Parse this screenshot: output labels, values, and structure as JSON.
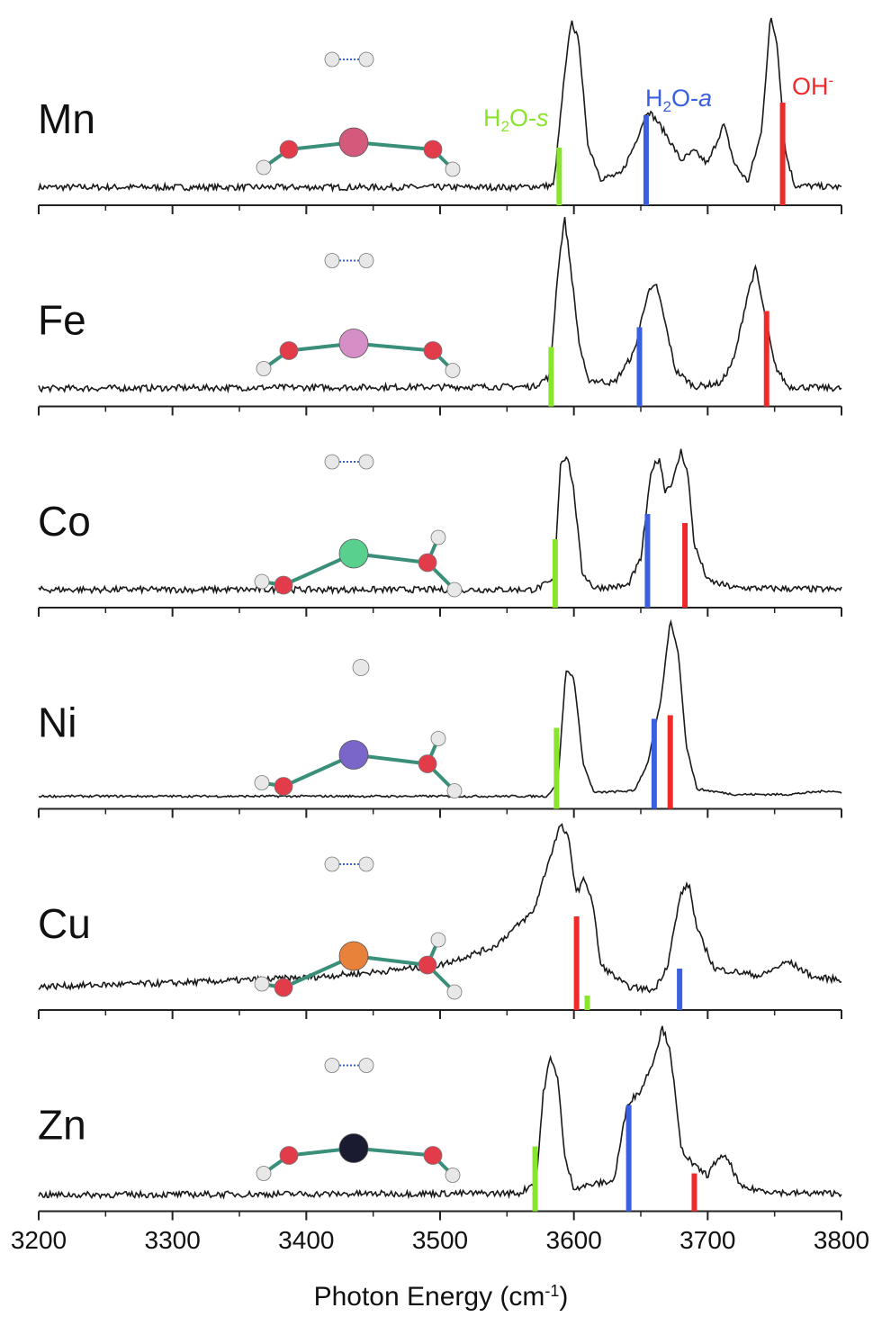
{
  "chart_data": {
    "type": "line",
    "x_axis": {
      "label": "Photon Energy (cm",
      "label_sup": "-1",
      "label_end": ")",
      "range": [
        3200,
        3800
      ],
      "ticks": [
        3200,
        3300,
        3400,
        3500,
        3600,
        3700,
        3800
      ],
      "tick_labels": [
        "3200",
        "3300",
        "3400",
        "3500",
        "3600",
        "3700",
        "3800"
      ]
    },
    "annotations": {
      "h2o_s": {
        "main": "H",
        "sub": "2",
        "rest": "O-",
        "italic": "s",
        "color": "#88e42c"
      },
      "h2o_a": {
        "main": "H",
        "sub": "2",
        "rest": "O-",
        "italic": "a",
        "color": "#3a5fe0"
      },
      "oh": {
        "main": "OH",
        "sup": "-",
        "color": "#ee2a2a"
      }
    },
    "colors": {
      "h2o_s": "#88e42c",
      "h2o_a": "#3a5fe0",
      "oh": "#ee2a2a",
      "trace": "#1a1a1a"
    },
    "panels": [
      {
        "label": "Mn",
        "metal_color": "#d45a7c",
        "geometry": "linear",
        "spectrum": [
          [
            3200,
            0.05
          ],
          [
            3560,
            0.05
          ],
          [
            3585,
            0.06
          ],
          [
            3592,
            0.6
          ],
          [
            3598,
            0.98
          ],
          [
            3604,
            0.85
          ],
          [
            3610,
            0.3
          ],
          [
            3620,
            0.1
          ],
          [
            3635,
            0.12
          ],
          [
            3645,
            0.28
          ],
          [
            3655,
            0.48
          ],
          [
            3662,
            0.42
          ],
          [
            3670,
            0.33
          ],
          [
            3680,
            0.2
          ],
          [
            3690,
            0.25
          ],
          [
            3700,
            0.18
          ],
          [
            3712,
            0.4
          ],
          [
            3720,
            0.18
          ],
          [
            3730,
            0.08
          ],
          [
            3740,
            0.35
          ],
          [
            3747,
            1.0
          ],
          [
            3752,
            0.85
          ],
          [
            3758,
            0.25
          ],
          [
            3765,
            0.06
          ],
          [
            3800,
            0.05
          ]
        ],
        "sticks": [
          {
            "mode": "H2O-s",
            "x": 3589,
            "height": 0.32,
            "color": "#88e42c"
          },
          {
            "mode": "H2O-a",
            "x": 3654,
            "height": 0.5,
            "color": "#3a5fe0"
          },
          {
            "mode": "OH-",
            "x": 3756,
            "height": 0.57,
            "color": "#ee2a2a"
          }
        ]
      },
      {
        "label": "Fe",
        "metal_color": "#d58fc6",
        "geometry": "linear",
        "spectrum": [
          [
            3200,
            0.05
          ],
          [
            3570,
            0.06
          ],
          [
            3582,
            0.12
          ],
          [
            3588,
            0.7
          ],
          [
            3593,
            1.0
          ],
          [
            3598,
            0.7
          ],
          [
            3604,
            0.3
          ],
          [
            3610,
            0.1
          ],
          [
            3630,
            0.08
          ],
          [
            3645,
            0.25
          ],
          [
            3655,
            0.58
          ],
          [
            3662,
            0.62
          ],
          [
            3668,
            0.42
          ],
          [
            3676,
            0.15
          ],
          [
            3690,
            0.06
          ],
          [
            3710,
            0.08
          ],
          [
            3720,
            0.22
          ],
          [
            3730,
            0.58
          ],
          [
            3736,
            0.72
          ],
          [
            3742,
            0.48
          ],
          [
            3750,
            0.18
          ],
          [
            3760,
            0.06
          ],
          [
            3800,
            0.05
          ]
        ],
        "sticks": [
          {
            "mode": "H2O-s",
            "x": 3583,
            "height": 0.33,
            "color": "#88e42c"
          },
          {
            "mode": "H2O-a",
            "x": 3649,
            "height": 0.44,
            "color": "#3a5fe0"
          },
          {
            "mode": "OH-",
            "x": 3744,
            "height": 0.53,
            "color": "#ee2a2a"
          }
        ]
      },
      {
        "label": "Co",
        "metal_color": "#5ad08e",
        "geometry": "bent",
        "spectrum": [
          [
            3200,
            0.05
          ],
          [
            3570,
            0.05
          ],
          [
            3585,
            0.1
          ],
          [
            3590,
            0.75
          ],
          [
            3595,
            0.8
          ],
          [
            3600,
            0.6
          ],
          [
            3606,
            0.15
          ],
          [
            3615,
            0.06
          ],
          [
            3640,
            0.07
          ],
          [
            3650,
            0.22
          ],
          [
            3658,
            0.72
          ],
          [
            3664,
            0.78
          ],
          [
            3668,
            0.6
          ],
          [
            3674,
            0.65
          ],
          [
            3680,
            0.82
          ],
          [
            3685,
            0.7
          ],
          [
            3690,
            0.3
          ],
          [
            3700,
            0.1
          ],
          [
            3720,
            0.06
          ],
          [
            3800,
            0.05
          ]
        ],
        "sticks": [
          {
            "mode": "H2O-s",
            "x": 3586,
            "height": 0.38,
            "color": "#88e42c"
          },
          {
            "mode": "H2O-a",
            "x": 3655,
            "height": 0.52,
            "color": "#3a5fe0"
          },
          {
            "mode": "OH-",
            "x": 3683,
            "height": 0.47,
            "color": "#ee2a2a"
          }
        ]
      },
      {
        "label": "Ni",
        "metal_color": "#7a66c8",
        "geometry": "bent",
        "spectrum": [
          [
            3200,
            0.02
          ],
          [
            3580,
            0.02
          ],
          [
            3588,
            0.1
          ],
          [
            3594,
            0.72
          ],
          [
            3600,
            0.68
          ],
          [
            3607,
            0.2
          ],
          [
            3615,
            0.04
          ],
          [
            3645,
            0.05
          ],
          [
            3655,
            0.2
          ],
          [
            3665,
            0.55
          ],
          [
            3672,
            1.0
          ],
          [
            3678,
            0.82
          ],
          [
            3684,
            0.3
          ],
          [
            3692,
            0.06
          ],
          [
            3720,
            0.03
          ],
          [
            3760,
            0.03
          ],
          [
            3790,
            0.05
          ],
          [
            3800,
            0.04
          ]
        ],
        "sticks": [
          {
            "mode": "H2O-s",
            "x": 3587,
            "height": 0.45,
            "color": "#88e42c"
          },
          {
            "mode": "H2O-a",
            "x": 3660,
            "height": 0.5,
            "color": "#3a5fe0"
          },
          {
            "mode": "OH-",
            "x": 3672,
            "height": 0.52,
            "color": "#ee2a2a"
          }
        ]
      },
      {
        "label": "Cu",
        "metal_color": "#e8823a",
        "geometry": "bent",
        "spectrum": [
          [
            3200,
            0.08
          ],
          [
            3300,
            0.1
          ],
          [
            3400,
            0.13
          ],
          [
            3450,
            0.16
          ],
          [
            3500,
            0.2
          ],
          [
            3540,
            0.3
          ],
          [
            3570,
            0.5
          ],
          [
            3580,
            0.75
          ],
          [
            3590,
            0.98
          ],
          [
            3596,
            0.9
          ],
          [
            3602,
            0.6
          ],
          [
            3608,
            0.68
          ],
          [
            3614,
            0.55
          ],
          [
            3620,
            0.2
          ],
          [
            3640,
            0.08
          ],
          [
            3660,
            0.06
          ],
          [
            3670,
            0.2
          ],
          [
            3680,
            0.6
          ],
          [
            3686,
            0.65
          ],
          [
            3692,
            0.4
          ],
          [
            3705,
            0.18
          ],
          [
            3740,
            0.14
          ],
          [
            3760,
            0.22
          ],
          [
            3780,
            0.13
          ],
          [
            3800,
            0.12
          ]
        ],
        "sticks": [
          {
            "mode": "OH-",
            "x": 3602,
            "height": 0.52,
            "color": "#ee2a2a"
          },
          {
            "mode": "H2O-s",
            "x": 3610,
            "height": 0.08,
            "color": "#88e42c"
          },
          {
            "mode": "H2O-a",
            "x": 3679,
            "height": 0.23,
            "color": "#3a5fe0"
          }
        ]
      },
      {
        "label": "Zn",
        "metal_color": "#1a1a30",
        "geometry": "linear",
        "spectrum": [
          [
            3200,
            0.04
          ],
          [
            3560,
            0.05
          ],
          [
            3572,
            0.12
          ],
          [
            3577,
            0.6
          ],
          [
            3582,
            0.8
          ],
          [
            3588,
            0.7
          ],
          [
            3593,
            0.25
          ],
          [
            3600,
            0.08
          ],
          [
            3615,
            0.1
          ],
          [
            3630,
            0.12
          ],
          [
            3640,
            0.55
          ],
          [
            3650,
            0.62
          ],
          [
            3660,
            0.8
          ],
          [
            3666,
            0.97
          ],
          [
            3672,
            0.85
          ],
          [
            3680,
            0.3
          ],
          [
            3690,
            0.2
          ],
          [
            3700,
            0.15
          ],
          [
            3708,
            0.25
          ],
          [
            3715,
            0.24
          ],
          [
            3725,
            0.08
          ],
          [
            3760,
            0.05
          ],
          [
            3800,
            0.05
          ]
        ],
        "sticks": [
          {
            "mode": "H2O-s",
            "x": 3571,
            "height": 0.36,
            "color": "#88e42c"
          },
          {
            "mode": "H2O-a",
            "x": 3641,
            "height": 0.59,
            "color": "#3a5fe0"
          },
          {
            "mode": "OH-",
            "x": 3690,
            "height": 0.21,
            "color": "#ee2a2a"
          }
        ]
      }
    ]
  }
}
